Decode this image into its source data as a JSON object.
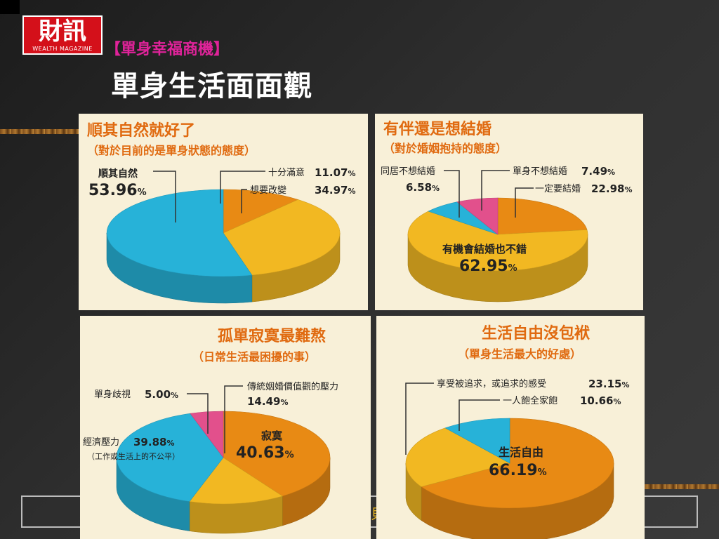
{
  "logo": {
    "text": "財訊",
    "subtext": "WEALTH MAGAZINE"
  },
  "header": {
    "subtitle": "【單身幸福商機】",
    "title": "單身生活面面觀"
  },
  "footer": {
    "text": "貝"
  },
  "colors": {
    "orange": "#e88a14",
    "yellow": "#f2b822",
    "blue": "#27b2d8",
    "pink": "#e2508c",
    "heading": "#e06a10",
    "panel_bg": "#f8f0d8"
  },
  "chart_data": [
    {
      "type": "pie",
      "title": "順其自然就好了",
      "subtitle": "（對於目前的是單身狀態的態度）",
      "series": [
        {
          "name": "十分滿意",
          "value": 11.07,
          "color": "orange"
        },
        {
          "name": "想要改變",
          "value": 34.97,
          "color": "yellow"
        },
        {
          "name": "順其自然",
          "value": 53.96,
          "color": "blue"
        }
      ]
    },
    {
      "type": "pie",
      "title": "有伴還是想結婚",
      "subtitle": "（對於婚姻抱持的態度）",
      "series": [
        {
          "name": "一定要結婚",
          "value": 22.98,
          "color": "orange"
        },
        {
          "name": "有機會結婚也不錯",
          "value": 62.95,
          "color": "yellow"
        },
        {
          "name": "同居不想結婚",
          "value": 6.58,
          "color": "blue"
        },
        {
          "name": "單身不想結婚",
          "value": 7.49,
          "color": "pink"
        }
      ]
    },
    {
      "type": "pie",
      "title": "孤單寂寞最難熬",
      "subtitle": "（日常生活最困擾的事）",
      "series": [
        {
          "name": "寂寞",
          "value": 40.63,
          "color": "orange"
        },
        {
          "name": "傳統姻婚價值觀的壓力",
          "value": 14.49,
          "color": "yellow"
        },
        {
          "name": "經濟壓力",
          "value": 39.88,
          "color": "blue",
          "note": "（工作或生活上的不公平）"
        },
        {
          "name": "單身歧視",
          "value": 5.0,
          "color": "pink"
        }
      ]
    },
    {
      "type": "pie",
      "title": "生活自由沒包袱",
      "subtitle": "（單身生活最大的好處）",
      "series": [
        {
          "name": "生活自由",
          "value": 66.19,
          "color": "orange"
        },
        {
          "name": "享受被追求，或追求的感受",
          "value": 23.15,
          "color": "yellow"
        },
        {
          "name": "一人飽全家飽",
          "value": 10.66,
          "color": "blue"
        }
      ]
    }
  ]
}
